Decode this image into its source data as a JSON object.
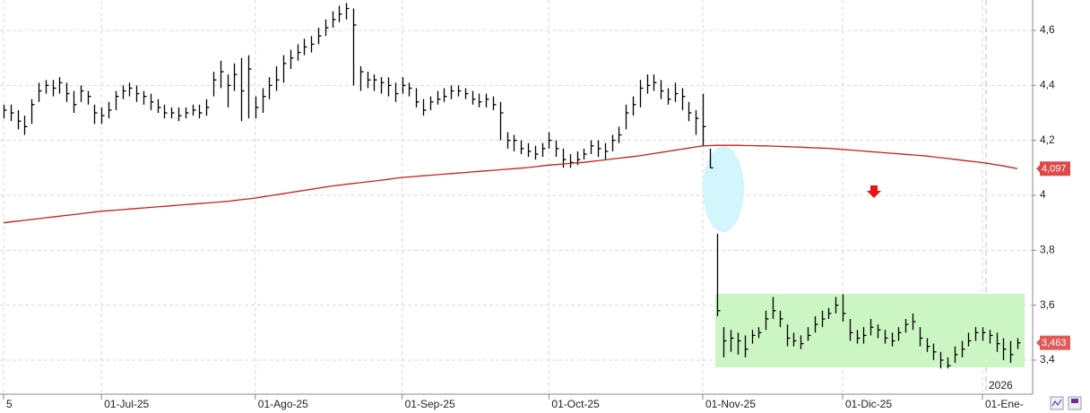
{
  "chart_data": {
    "type": "ohlc",
    "categories": [
      "5",
      null,
      null,
      null,
      null,
      null,
      null,
      null,
      null,
      null,
      null,
      null,
      null,
      null,
      "01-Jul-25",
      null,
      null,
      null,
      null,
      null,
      null,
      null,
      null,
      null,
      null,
      null,
      null,
      null,
      null,
      null,
      null,
      null,
      null,
      null,
      null,
      null,
      "01-Ago-25",
      null,
      null,
      null,
      null,
      null,
      null,
      null,
      null,
      null,
      null,
      null,
      null,
      null,
      null,
      null,
      null,
      null,
      null,
      null,
      null,
      "01-Sep-25",
      null,
      null,
      null,
      null,
      null,
      null,
      null,
      null,
      null,
      null,
      null,
      null,
      null,
      null,
      null,
      null,
      null,
      null,
      null,
      null,
      "01-Oct-25",
      null,
      null,
      null,
      null,
      null,
      null,
      null,
      null,
      null,
      null,
      null,
      null,
      null,
      null,
      null,
      null,
      null,
      null,
      null,
      null,
      null,
      "01-Nov-25",
      null,
      null,
      null,
      null,
      null,
      null,
      null,
      null,
      null,
      null,
      null,
      null,
      null,
      null,
      null,
      null,
      null,
      null,
      null,
      "01-Dic-25",
      null,
      null,
      null,
      null,
      null,
      null,
      null,
      null,
      null,
      null,
      null,
      null,
      null,
      null,
      null,
      null,
      null,
      null,
      null,
      "01-Ene-",
      null,
      null,
      null,
      null,
      null
    ],
    "high": [
      4.33,
      4.33,
      4.31,
      4.29,
      4.35,
      4.41,
      4.42,
      4.42,
      4.43,
      4.41,
      4.38,
      4.4,
      4.38,
      4.33,
      4.32,
      4.34,
      4.38,
      4.4,
      4.41,
      4.4,
      4.38,
      4.37,
      4.35,
      4.33,
      4.32,
      4.32,
      4.32,
      4.33,
      4.33,
      4.35,
      4.45,
      4.49,
      4.44,
      4.48,
      4.5,
      4.51,
      4.36,
      4.39,
      4.43,
      4.47,
      4.51,
      4.53,
      4.55,
      4.57,
      4.58,
      4.61,
      4.64,
      4.67,
      4.69,
      4.7,
      4.68,
      4.47,
      4.45,
      4.44,
      4.43,
      4.43,
      4.41,
      4.43,
      4.41,
      4.39,
      4.35,
      4.36,
      4.38,
      4.39,
      4.4,
      4.4,
      4.39,
      4.38,
      4.37,
      4.37,
      4.36,
      4.34,
      4.23,
      4.22,
      4.2,
      4.19,
      4.18,
      4.19,
      4.23,
      4.2,
      4.17,
      4.15,
      4.16,
      4.17,
      4.2,
      4.2,
      4.19,
      4.22,
      4.25,
      4.33,
      4.36,
      4.42,
      4.44,
      4.44,
      4.42,
      4.39,
      4.41,
      4.39,
      4.34,
      4.31,
      4.37,
      4.17,
      3.86,
      3.52,
      3.51,
      3.5,
      3.49,
      3.51,
      3.52,
      3.58,
      3.63,
      3.58,
      3.53,
      3.5,
      3.49,
      3.52,
      3.56,
      3.58,
      3.59,
      3.63,
      3.64,
      3.55,
      3.51,
      3.52,
      3.55,
      3.53,
      3.51,
      3.5,
      3.52,
      3.55,
      3.57,
      3.52,
      3.48,
      3.46,
      3.43,
      3.41,
      3.45,
      3.47,
      3.5,
      3.52,
      3.52,
      3.51,
      3.5,
      3.48,
      3.47,
      3.48
    ],
    "low": [
      4.28,
      4.27,
      4.24,
      4.22,
      4.26,
      4.34,
      4.37,
      4.36,
      4.37,
      4.34,
      4.3,
      4.34,
      4.33,
      4.26,
      4.26,
      4.28,
      4.31,
      4.35,
      4.36,
      4.34,
      4.33,
      4.31,
      4.3,
      4.28,
      4.28,
      4.27,
      4.28,
      4.29,
      4.28,
      4.29,
      4.36,
      4.39,
      4.32,
      4.38,
      4.27,
      4.28,
      4.28,
      4.3,
      4.35,
      4.38,
      4.41,
      4.46,
      4.49,
      4.51,
      4.52,
      4.55,
      4.58,
      4.61,
      4.63,
      4.64,
      4.4,
      4.38,
      4.39,
      4.38,
      4.37,
      4.36,
      4.34,
      4.37,
      4.36,
      4.32,
      4.29,
      4.31,
      4.33,
      4.34,
      4.35,
      4.36,
      4.35,
      4.33,
      4.32,
      4.32,
      4.31,
      4.2,
      4.17,
      4.16,
      4.15,
      4.14,
      4.13,
      4.14,
      4.17,
      4.14,
      4.1,
      4.1,
      4.11,
      4.13,
      4.15,
      4.14,
      4.13,
      4.16,
      4.19,
      4.24,
      4.29,
      4.32,
      4.37,
      4.38,
      4.35,
      4.33,
      4.34,
      4.31,
      4.27,
      4.22,
      4.18,
      4.1,
      3.56,
      3.41,
      3.43,
      3.42,
      3.41,
      3.46,
      3.48,
      3.51,
      3.55,
      3.52,
      3.45,
      3.45,
      3.44,
      3.47,
      3.5,
      3.52,
      3.55,
      3.57,
      3.54,
      3.47,
      3.46,
      3.46,
      3.49,
      3.48,
      3.46,
      3.45,
      3.47,
      3.5,
      3.51,
      3.45,
      3.43,
      3.4,
      3.37,
      3.37,
      3.39,
      3.41,
      3.45,
      3.47,
      3.47,
      3.46,
      3.43,
      3.4,
      3.39,
      3.44
    ],
    "close": [
      4.31,
      4.3,
      4.27,
      4.25,
      4.33,
      4.38,
      4.4,
      4.39,
      4.41,
      4.37,
      4.33,
      4.38,
      4.36,
      4.3,
      4.29,
      4.31,
      4.36,
      4.38,
      4.39,
      4.37,
      4.36,
      4.34,
      4.32,
      4.3,
      4.3,
      4.29,
      4.3,
      4.31,
      4.3,
      4.32,
      4.42,
      4.45,
      4.4,
      4.44,
      4.38,
      4.46,
      4.32,
      4.36,
      4.4,
      4.42,
      4.48,
      4.5,
      4.52,
      4.54,
      4.55,
      4.58,
      4.61,
      4.64,
      4.66,
      4.68,
      4.62,
      4.45,
      4.42,
      4.42,
      4.41,
      4.4,
      4.37,
      4.4,
      4.39,
      4.34,
      4.31,
      4.34,
      4.35,
      4.36,
      4.38,
      4.38,
      4.37,
      4.35,
      4.34,
      4.35,
      4.33,
      4.3,
      4.2,
      4.2,
      4.17,
      4.16,
      4.15,
      4.17,
      4.2,
      4.17,
      4.13,
      4.12,
      4.13,
      4.15,
      4.18,
      4.17,
      4.16,
      4.2,
      4.22,
      4.3,
      4.33,
      4.39,
      4.4,
      4.41,
      4.38,
      4.35,
      4.37,
      4.36,
      4.3,
      4.28,
      4.25,
      4.1,
      3.58,
      3.47,
      3.48,
      3.47,
      3.44,
      3.49,
      3.5,
      3.55,
      3.58,
      3.55,
      3.48,
      3.47,
      3.46,
      3.49,
      3.53,
      3.55,
      3.57,
      3.6,
      3.57,
      3.5,
      3.48,
      3.49,
      3.52,
      3.51,
      3.48,
      3.47,
      3.5,
      3.53,
      3.54,
      3.48,
      3.45,
      3.43,
      3.4,
      3.38,
      3.42,
      3.44,
      3.47,
      3.5,
      3.5,
      3.49,
      3.46,
      3.44,
      3.42,
      3.463
    ],
    "color": "#000000",
    "moving_average": {
      "color": "#c81e1e",
      "values": [
        3.9,
        3.903,
        3.906,
        3.909,
        3.912,
        3.915,
        3.918,
        3.921,
        3.924,
        3.927,
        3.93,
        3.933,
        3.936,
        3.939,
        3.942,
        3.944,
        3.946,
        3.948,
        3.95,
        3.952,
        3.954,
        3.956,
        3.958,
        3.96,
        3.962,
        3.964,
        3.966,
        3.968,
        3.97,
        3.972,
        3.974,
        3.976,
        3.978,
        3.981,
        3.984,
        3.987,
        3.99,
        3.994,
        3.998,
        4.002,
        4.006,
        4.01,
        4.014,
        4.018,
        4.022,
        4.026,
        4.03,
        4.034,
        4.037,
        4.04,
        4.043,
        4.046,
        4.049,
        4.052,
        4.055,
        4.058,
        4.062,
        4.065,
        4.067,
        4.069,
        4.071,
        4.073,
        4.075,
        4.077,
        4.079,
        4.081,
        4.083,
        4.085,
        4.087,
        4.089,
        4.091,
        4.093,
        4.095,
        4.097,
        4.099,
        4.101,
        4.104,
        4.107,
        4.11,
        4.112,
        4.114,
        4.116,
        4.118,
        4.12,
        4.123,
        4.126,
        4.129,
        4.132,
        4.135,
        4.138,
        4.141,
        4.144,
        4.148,
        4.152,
        4.156,
        4.16,
        4.164,
        4.168,
        4.172,
        4.176,
        4.18,
        4.181,
        4.182,
        4.182,
        4.182,
        4.182,
        4.181,
        4.181,
        4.18,
        4.18,
        4.179,
        4.178,
        4.177,
        4.176,
        4.175,
        4.174,
        4.173,
        4.172,
        4.171,
        4.169,
        4.167,
        4.165,
        4.163,
        4.161,
        4.159,
        4.157,
        4.155,
        4.153,
        4.151,
        4.149,
        4.147,
        4.145,
        4.143,
        4.14,
        4.137,
        4.134,
        4.131,
        4.128,
        4.125,
        4.122,
        4.119,
        4.115,
        4.111,
        4.107,
        4.102,
        4.097
      ]
    },
    "price_labels": [
      {
        "value": 4.097,
        "label": "4,097",
        "color": "#e04848"
      },
      {
        "value": 3.463,
        "label": "3,463",
        "color": "#e05a5a"
      }
    ],
    "year_label": "2026",
    "ylim": [
      3.276,
      4.711
    ],
    "yticks": [
      {
        "value": 3.4,
        "label": "3,4"
      },
      {
        "value": 3.6,
        "label": "3,6"
      },
      {
        "value": 3.8,
        "label": "3,8"
      },
      4,
      {
        "value": 4.2,
        "label": "4,2"
      },
      {
        "value": 4.4,
        "label": "4,4"
      },
      {
        "value": 4.6,
        "label": "4,6"
      }
    ],
    "grid": true
  }
}
